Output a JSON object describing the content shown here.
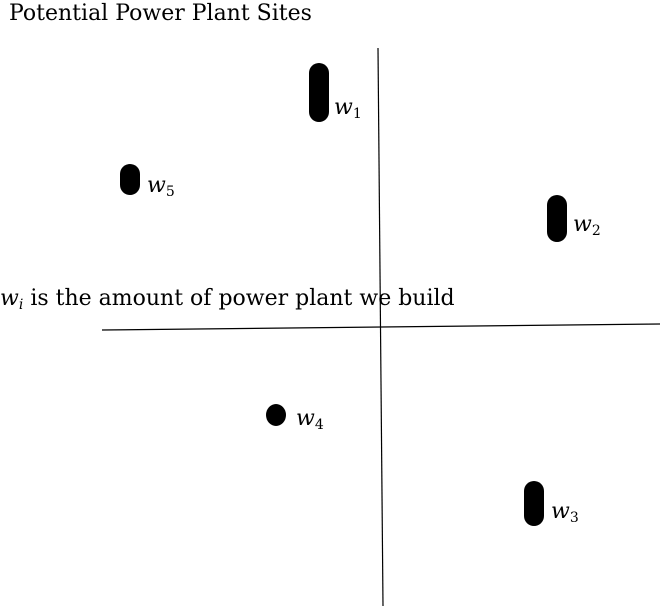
{
  "title": "Potential Power Plant Sites",
  "caption": {
    "var": "w",
    "sub": "i",
    "text": " is the amount of power plant we build"
  },
  "sites": [
    {
      "var": "w",
      "sub": "1",
      "level": 5
    },
    {
      "var": "w",
      "sub": "2",
      "level": 3
    },
    {
      "var": "w",
      "sub": "3",
      "level": 4
    },
    {
      "var": "w",
      "sub": "4",
      "level": 1
    },
    {
      "var": "w",
      "sub": "5",
      "level": 2
    }
  ]
}
